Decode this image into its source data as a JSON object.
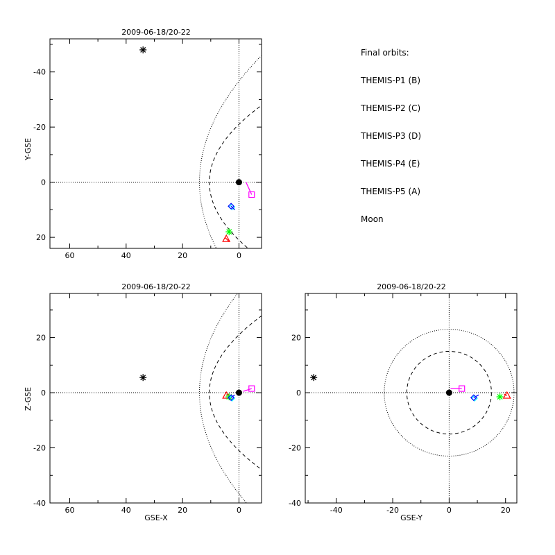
{
  "chart_data": [
    {
      "type": "scatter",
      "title": "2009-06-18/20-22",
      "xlabel": "",
      "ylabel": "Y-GSE",
      "xlim": [
        67,
        -8
      ],
      "ylim": [
        24,
        -52
      ],
      "grid": false,
      "x_ticks": [
        60,
        40,
        20,
        0
      ],
      "y_ticks": [
        -40,
        -20,
        0,
        20
      ],
      "x_minor": 2,
      "y_minor": 2,
      "reference_lines": [
        {
          "axis": "x",
          "value": 0
        },
        {
          "axis": "y",
          "value": 0
        }
      ],
      "boundaries": [
        {
          "style": "dotted",
          "nose": 14,
          "scale": 48
        },
        {
          "style": "dashed",
          "nose": 10.5,
          "scale": 21
        }
      ],
      "earth": {
        "x": 0,
        "y": 0
      },
      "series": [
        {
          "name": "THEMIS-P1 (B)",
          "marker": "triangle",
          "x": 4.5,
          "y": 20.5,
          "tail": [
            [
              5,
              20
            ],
            [
              3.5,
              21.5
            ]
          ]
        },
        {
          "name": "THEMIS-P2 (C)",
          "marker": "asterisk",
          "x": 3.5,
          "y": 18,
          "tail": []
        },
        {
          "name": "THEMIS-P3 (D)",
          "marker": "diamond",
          "x": 2.5,
          "y": 9,
          "tail": [
            [
              2.5,
              9
            ],
            [
              1.5,
              10
            ]
          ]
        },
        {
          "name": "THEMIS-P4 (E)",
          "marker": "diamond",
          "x": 2.8,
          "y": 8.7,
          "tail": [
            [
              2.8,
              8.7
            ],
            [
              1.5,
              10
            ]
          ]
        },
        {
          "name": "THEMIS-P5 (A)",
          "marker": "square",
          "x": -4.5,
          "y": 4.5,
          "tail": [
            [
              -4.5,
              4.5
            ],
            [
              -2.5,
              0
            ]
          ]
        },
        {
          "name": "Moon",
          "marker": "asterisk",
          "x": 34,
          "y": -48,
          "tail": []
        }
      ]
    },
    {
      "type": "scatter",
      "title": "2009-06-18/20-22",
      "xlabel": "GSE-X",
      "ylabel": "Z-GSE",
      "xlim": [
        67,
        -8
      ],
      "ylim": [
        -40,
        36
      ],
      "grid": false,
      "x_ticks": [
        60,
        40,
        20,
        0
      ],
      "y_ticks": [
        -40,
        -20,
        0,
        20
      ],
      "x_minor": 2,
      "y_minor": 2,
      "reference_lines": [
        {
          "axis": "x",
          "value": 0
        },
        {
          "axis": "y",
          "value": 0
        }
      ],
      "boundaries": [
        {
          "style": "dotted",
          "nose": 14,
          "scale": 48
        },
        {
          "style": "dashed",
          "nose": 10.5,
          "scale": 21
        }
      ],
      "earth": {
        "x": 0,
        "y": 0
      },
      "series": [
        {
          "name": "THEMIS-P1 (B)",
          "marker": "triangle",
          "x": 4.5,
          "y": -1,
          "tail": [
            [
              4.5,
              -1
            ],
            [
              3.5,
              -0.5
            ]
          ]
        },
        {
          "name": "THEMIS-P2 (C)",
          "marker": "asterisk",
          "x": 3.5,
          "y": -1.5,
          "tail": []
        },
        {
          "name": "THEMIS-P3 (D)",
          "marker": "diamond",
          "x": 2.5,
          "y": -2,
          "tail": []
        },
        {
          "name": "THEMIS-P4 (E)",
          "marker": "diamond",
          "x": 2.8,
          "y": -1.8,
          "tail": [
            [
              2.8,
              -1.8
            ],
            [
              1.5,
              -0.8
            ]
          ]
        },
        {
          "name": "THEMIS-P5 (A)",
          "marker": "square",
          "x": -4.5,
          "y": 1.5,
          "tail": [
            [
              -4.5,
              1.5
            ],
            [
              -1.5,
              0.5
            ]
          ]
        },
        {
          "name": "Moon",
          "marker": "asterisk",
          "x": 34,
          "y": 5.5,
          "tail": []
        }
      ]
    },
    {
      "type": "scatter",
      "title": "2009-06-18/20-22",
      "xlabel": "GSE-Y",
      "ylabel": "",
      "xlim": [
        -51,
        24
      ],
      "ylim": [
        -40,
        36
      ],
      "grid": false,
      "x_ticks": [
        -40,
        -20,
        0,
        20
      ],
      "y_ticks": [
        -40,
        -20,
        0,
        20
      ],
      "x_minor": 2,
      "y_minor": 2,
      "reference_lines": [
        {
          "axis": "x",
          "value": 0
        },
        {
          "axis": "y",
          "value": 0
        }
      ],
      "circles": [
        {
          "style": "dotted",
          "r": 23
        },
        {
          "style": "dashed",
          "r": 15
        }
      ],
      "earth": {
        "x": 0,
        "y": 0
      },
      "series": [
        {
          "name": "THEMIS-P1 (B)",
          "marker": "triangle",
          "x": 20.5,
          "y": -1,
          "tail": [
            [
              20.5,
              -1
            ],
            [
              19.5,
              -0.5
            ]
          ]
        },
        {
          "name": "THEMIS-P2 (C)",
          "marker": "asterisk",
          "x": 18,
          "y": -1.5,
          "tail": []
        },
        {
          "name": "THEMIS-P3 (D)",
          "marker": "diamond",
          "x": 9,
          "y": -2,
          "tail": []
        },
        {
          "name": "THEMIS-P4 (E)",
          "marker": "diamond",
          "x": 8.7,
          "y": -1.8,
          "tail": [
            [
              8.7,
              -1.8
            ],
            [
              10.5,
              -0.8
            ]
          ]
        },
        {
          "name": "THEMIS-P5 (A)",
          "marker": "square",
          "x": 4.5,
          "y": 1.5,
          "tail": [
            [
              4.5,
              1.5
            ],
            [
              0.5,
              1.5
            ]
          ]
        },
        {
          "name": "Moon",
          "marker": "asterisk",
          "x": -48,
          "y": 5.5,
          "tail": []
        }
      ]
    }
  ],
  "legend": {
    "title": "Final orbits:",
    "items": [
      {
        "label": "THEMIS-P1 (B)",
        "color": "#ff0000"
      },
      {
        "label": "THEMIS-P2 (C)",
        "color": "#00ff00"
      },
      {
        "label": "THEMIS-P3 (D)",
        "color": "#00ffff"
      },
      {
        "label": "THEMIS-P4 (E)",
        "color": "#0000ff"
      },
      {
        "label": "THEMIS-P5 (A)",
        "color": "#ff00ff"
      },
      {
        "label": "Moon",
        "color": "#000000"
      }
    ]
  },
  "colors": {
    "THEMIS-P1 (B)": "#ff0000",
    "THEMIS-P2 (C)": "#00ff00",
    "THEMIS-P3 (D)": "#00ffff",
    "THEMIS-P4 (E)": "#0000ff",
    "THEMIS-P5 (A)": "#ff00ff",
    "Moon": "#000000",
    "axes": "#000000",
    "background": "#ffffff"
  }
}
